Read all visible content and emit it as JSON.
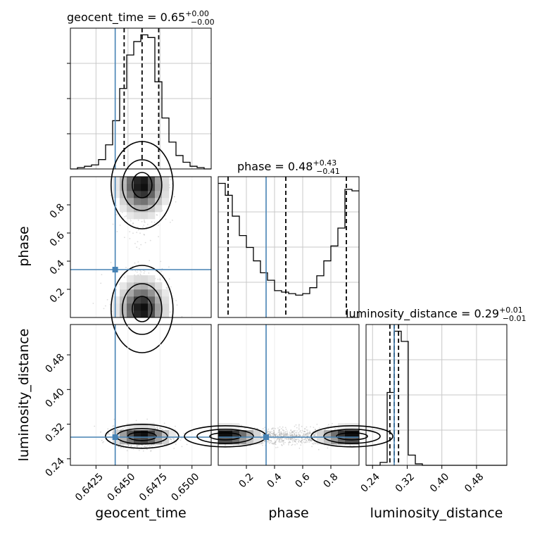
{
  "chart_data": {
    "type": "corner",
    "parameters": [
      "geocent_time",
      "phase",
      "luminosity_distance"
    ],
    "truth": {
      "geocent_time": 0.644,
      "phase": 0.34,
      "luminosity_distance": 0.29
    },
    "titles": [
      {
        "param": "geocent_time",
        "text": "geocent_time = 0.65",
        "sup": "+0.00",
        "sub": "−0.00"
      },
      {
        "param": "phase",
        "text": "phase = 0.48",
        "sup": "+0.43",
        "sub": "−0.41"
      },
      {
        "param": "luminosity_distance",
        "text": "luminosity_distance = 0.29",
        "sup": "+0.01",
        "sub": "−0.01"
      }
    ],
    "axes": {
      "geocent_time": {
        "range": [
          0.6405,
          0.6515
        ],
        "ticks": [
          0.6425,
          0.645,
          0.6475,
          0.65
        ],
        "tick_labels": [
          "0.6425",
          "0.6450",
          "0.6475",
          "0.6500"
        ]
      },
      "phase": {
        "range": [
          0.0,
          1.0
        ],
        "ticks": [
          0.2,
          0.4,
          0.6,
          0.8
        ],
        "tick_labels": [
          "0.2",
          "0.4",
          "0.6",
          "0.8"
        ]
      },
      "luminosity_distance": {
        "range": [
          0.225,
          0.55
        ],
        "ticks": [
          0.24,
          0.32,
          0.4,
          0.48
        ],
        "tick_labels": [
          "0.24",
          "0.32",
          "0.40",
          "0.48"
        ]
      }
    },
    "marginals": {
      "geocent_time": {
        "quantiles": [
          0.6447,
          0.6461,
          0.6474
        ],
        "bin_edges": [
          0.6405,
          0.64105,
          0.6416,
          0.64215,
          0.6427,
          0.64325,
          0.6438,
          0.64435,
          0.6449,
          0.64545,
          0.646,
          0.64655,
          0.6471,
          0.64765,
          0.6482,
          0.64875,
          0.6493,
          0.64985,
          0.6504,
          0.65095,
          0.6515
        ],
        "counts": [
          0,
          1,
          2,
          3,
          7,
          18,
          36,
          60,
          85,
          95,
          100,
          98,
          65,
          38,
          20,
          10,
          5,
          2,
          1,
          0
        ]
      },
      "phase": {
        "quantiles": [
          0.07,
          0.48,
          0.91
        ],
        "bin_edges": [
          0.0,
          0.05,
          0.1,
          0.15,
          0.2,
          0.25,
          0.3,
          0.35,
          0.4,
          0.45,
          0.5,
          0.55,
          0.6,
          0.65,
          0.7,
          0.75,
          0.8,
          0.85,
          0.9,
          0.95,
          1.0
        ],
        "counts": [
          90,
          82,
          68,
          55,
          47,
          38,
          30,
          25,
          18,
          17,
          16,
          15,
          16,
          20,
          28,
          38,
          48,
          60,
          86,
          85
        ]
      },
      "luminosity_distance": {
        "quantiles": [
          0.28,
          0.29,
          0.3
        ],
        "bin_edges": [
          0.225,
          0.24125,
          0.2575,
          0.27375,
          0.29,
          0.30625,
          0.3225,
          0.33875,
          0.355,
          0.37125,
          0.3875,
          0.40375,
          0.42,
          0.43625,
          0.4525,
          0.46875,
          0.485,
          0.50125,
          0.5175,
          0.53375,
          0.55
        ],
        "counts": [
          0,
          0,
          2,
          50,
          92,
          85,
          7,
          1,
          0,
          0,
          0,
          0,
          0,
          0,
          0,
          0,
          0,
          0,
          0,
          0
        ]
      }
    },
    "joint": [
      {
        "x": "geocent_time",
        "y": "phase",
        "x_center": 0.6461,
        "x_sigma": 0.00095,
        "modes_y": [
          0.06,
          0.94
        ],
        "y_sigma": 0.11,
        "contour_levels": [
          "inner",
          "middle",
          "outer"
        ]
      },
      {
        "x": "geocent_time",
        "y": "luminosity_distance",
        "x_center": 0.6461,
        "x_sigma": 0.0011,
        "y_center": 0.292,
        "y_sigma": 0.011,
        "contour_levels": [
          "inner",
          "middle",
          "outer"
        ]
      },
      {
        "x": "phase",
        "y": "luminosity_distance",
        "x_modes": [
          0.05,
          0.95
        ],
        "y_center": 0.292,
        "y_sigma": 0.01,
        "contour_levels": [
          "inner",
          "middle",
          "outer"
        ]
      }
    ],
    "grid": true,
    "colors": {
      "truth": "#4682b4",
      "hist": "#000000",
      "points": "#888888",
      "grid": "#c8c8c8"
    }
  }
}
